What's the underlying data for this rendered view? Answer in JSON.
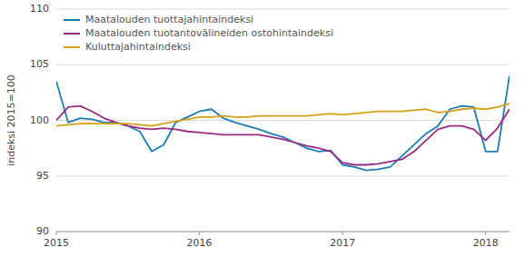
{
  "chart_data": {
    "type": "line",
    "y_label": "indeksi 2015=100",
    "categories": [
      "2015",
      null,
      null,
      null,
      null,
      null,
      null,
      null,
      null,
      null,
      null,
      null,
      "2016",
      null,
      null,
      null,
      null,
      null,
      null,
      null,
      null,
      null,
      null,
      null,
      "2017",
      null,
      null,
      null,
      null,
      null,
      null,
      null,
      null,
      null,
      null,
      null,
      "2018",
      null,
      null
    ],
    "series": [
      {
        "name": "Maatalouden tuottajahintaindeksi",
        "color": "#1F7BB8",
        "values": [
          103.5,
          99.8,
          100.2,
          100.1,
          99.8,
          99.8,
          99.5,
          99.0,
          97.2,
          97.8,
          99.8,
          100.3,
          100.8,
          101.0,
          100.2,
          99.8,
          99.5,
          99.2,
          98.8,
          98.5,
          98.0,
          97.5,
          97.2,
          97.3,
          96.0,
          95.8,
          95.5,
          95.6,
          95.8,
          96.8,
          97.8,
          98.8,
          99.5,
          101.0,
          101.3,
          101.2,
          97.2,
          97.2,
          104.0
        ]
      },
      {
        "name": "Maatalouden tuotantovälineiden ostohintaindeksi",
        "color": "#962C80",
        "values": [
          100.0,
          101.2,
          101.3,
          100.8,
          100.2,
          99.8,
          99.5,
          99.3,
          99.2,
          99.3,
          99.2,
          99.0,
          98.9,
          98.8,
          98.7,
          98.7,
          98.7,
          98.7,
          98.5,
          98.3,
          98.0,
          97.7,
          97.5,
          97.2,
          96.2,
          96.0,
          96.0,
          96.1,
          96.3,
          96.5,
          97.2,
          98.2,
          99.2,
          99.5,
          99.5,
          99.2,
          98.2,
          99.3,
          101.0
        ]
      },
      {
        "name": "Kuluttajahintaindeksi",
        "color": "#D4A017",
        "values": [
          99.5,
          99.6,
          99.7,
          99.7,
          99.7,
          99.7,
          99.7,
          99.6,
          99.5,
          99.7,
          99.9,
          100.1,
          100.3,
          100.3,
          100.4,
          100.3,
          100.3,
          100.4,
          100.4,
          100.4,
          100.4,
          100.4,
          100.5,
          100.6,
          100.5,
          100.6,
          100.7,
          100.8,
          100.8,
          100.8,
          100.9,
          101.0,
          100.7,
          100.8,
          101.0,
          101.1,
          101.0,
          101.2,
          101.5
        ]
      }
    ],
    "ylim": [
      90,
      110
    ],
    "yticks": [
      90,
      95,
      100,
      105,
      110
    ],
    "grid": true,
    "legend": "upper left"
  }
}
